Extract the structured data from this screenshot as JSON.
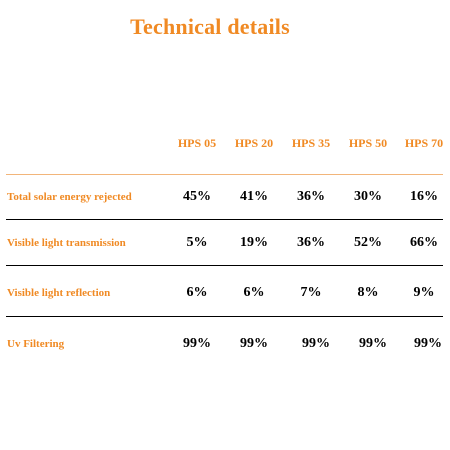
{
  "title": "Technical details",
  "columns": [
    "HPS 05",
    "HPS 20",
    "HPS 35",
    "HPS 50",
    "HPS 70"
  ],
  "rows": [
    {
      "label": "Total solar energy rejected",
      "values": [
        "45%",
        "41%",
        "36%",
        "30%",
        "16%"
      ]
    },
    {
      "label": "Visible light transmission",
      "values": [
        "5%",
        "19%",
        "36%",
        "52%",
        "66%"
      ]
    },
    {
      "label": "Visible light reflection",
      "values": [
        "6%",
        "6%",
        "7%",
        "8%",
        "9%"
      ]
    },
    {
      "label": "Uv Filtering",
      "values": [
        "99%",
        "99%",
        "99%",
        "99%",
        "99%"
      ]
    }
  ],
  "colors": {
    "accent": "#f08a24",
    "divider": "#000000",
    "header_rule": "#f2b57a"
  }
}
